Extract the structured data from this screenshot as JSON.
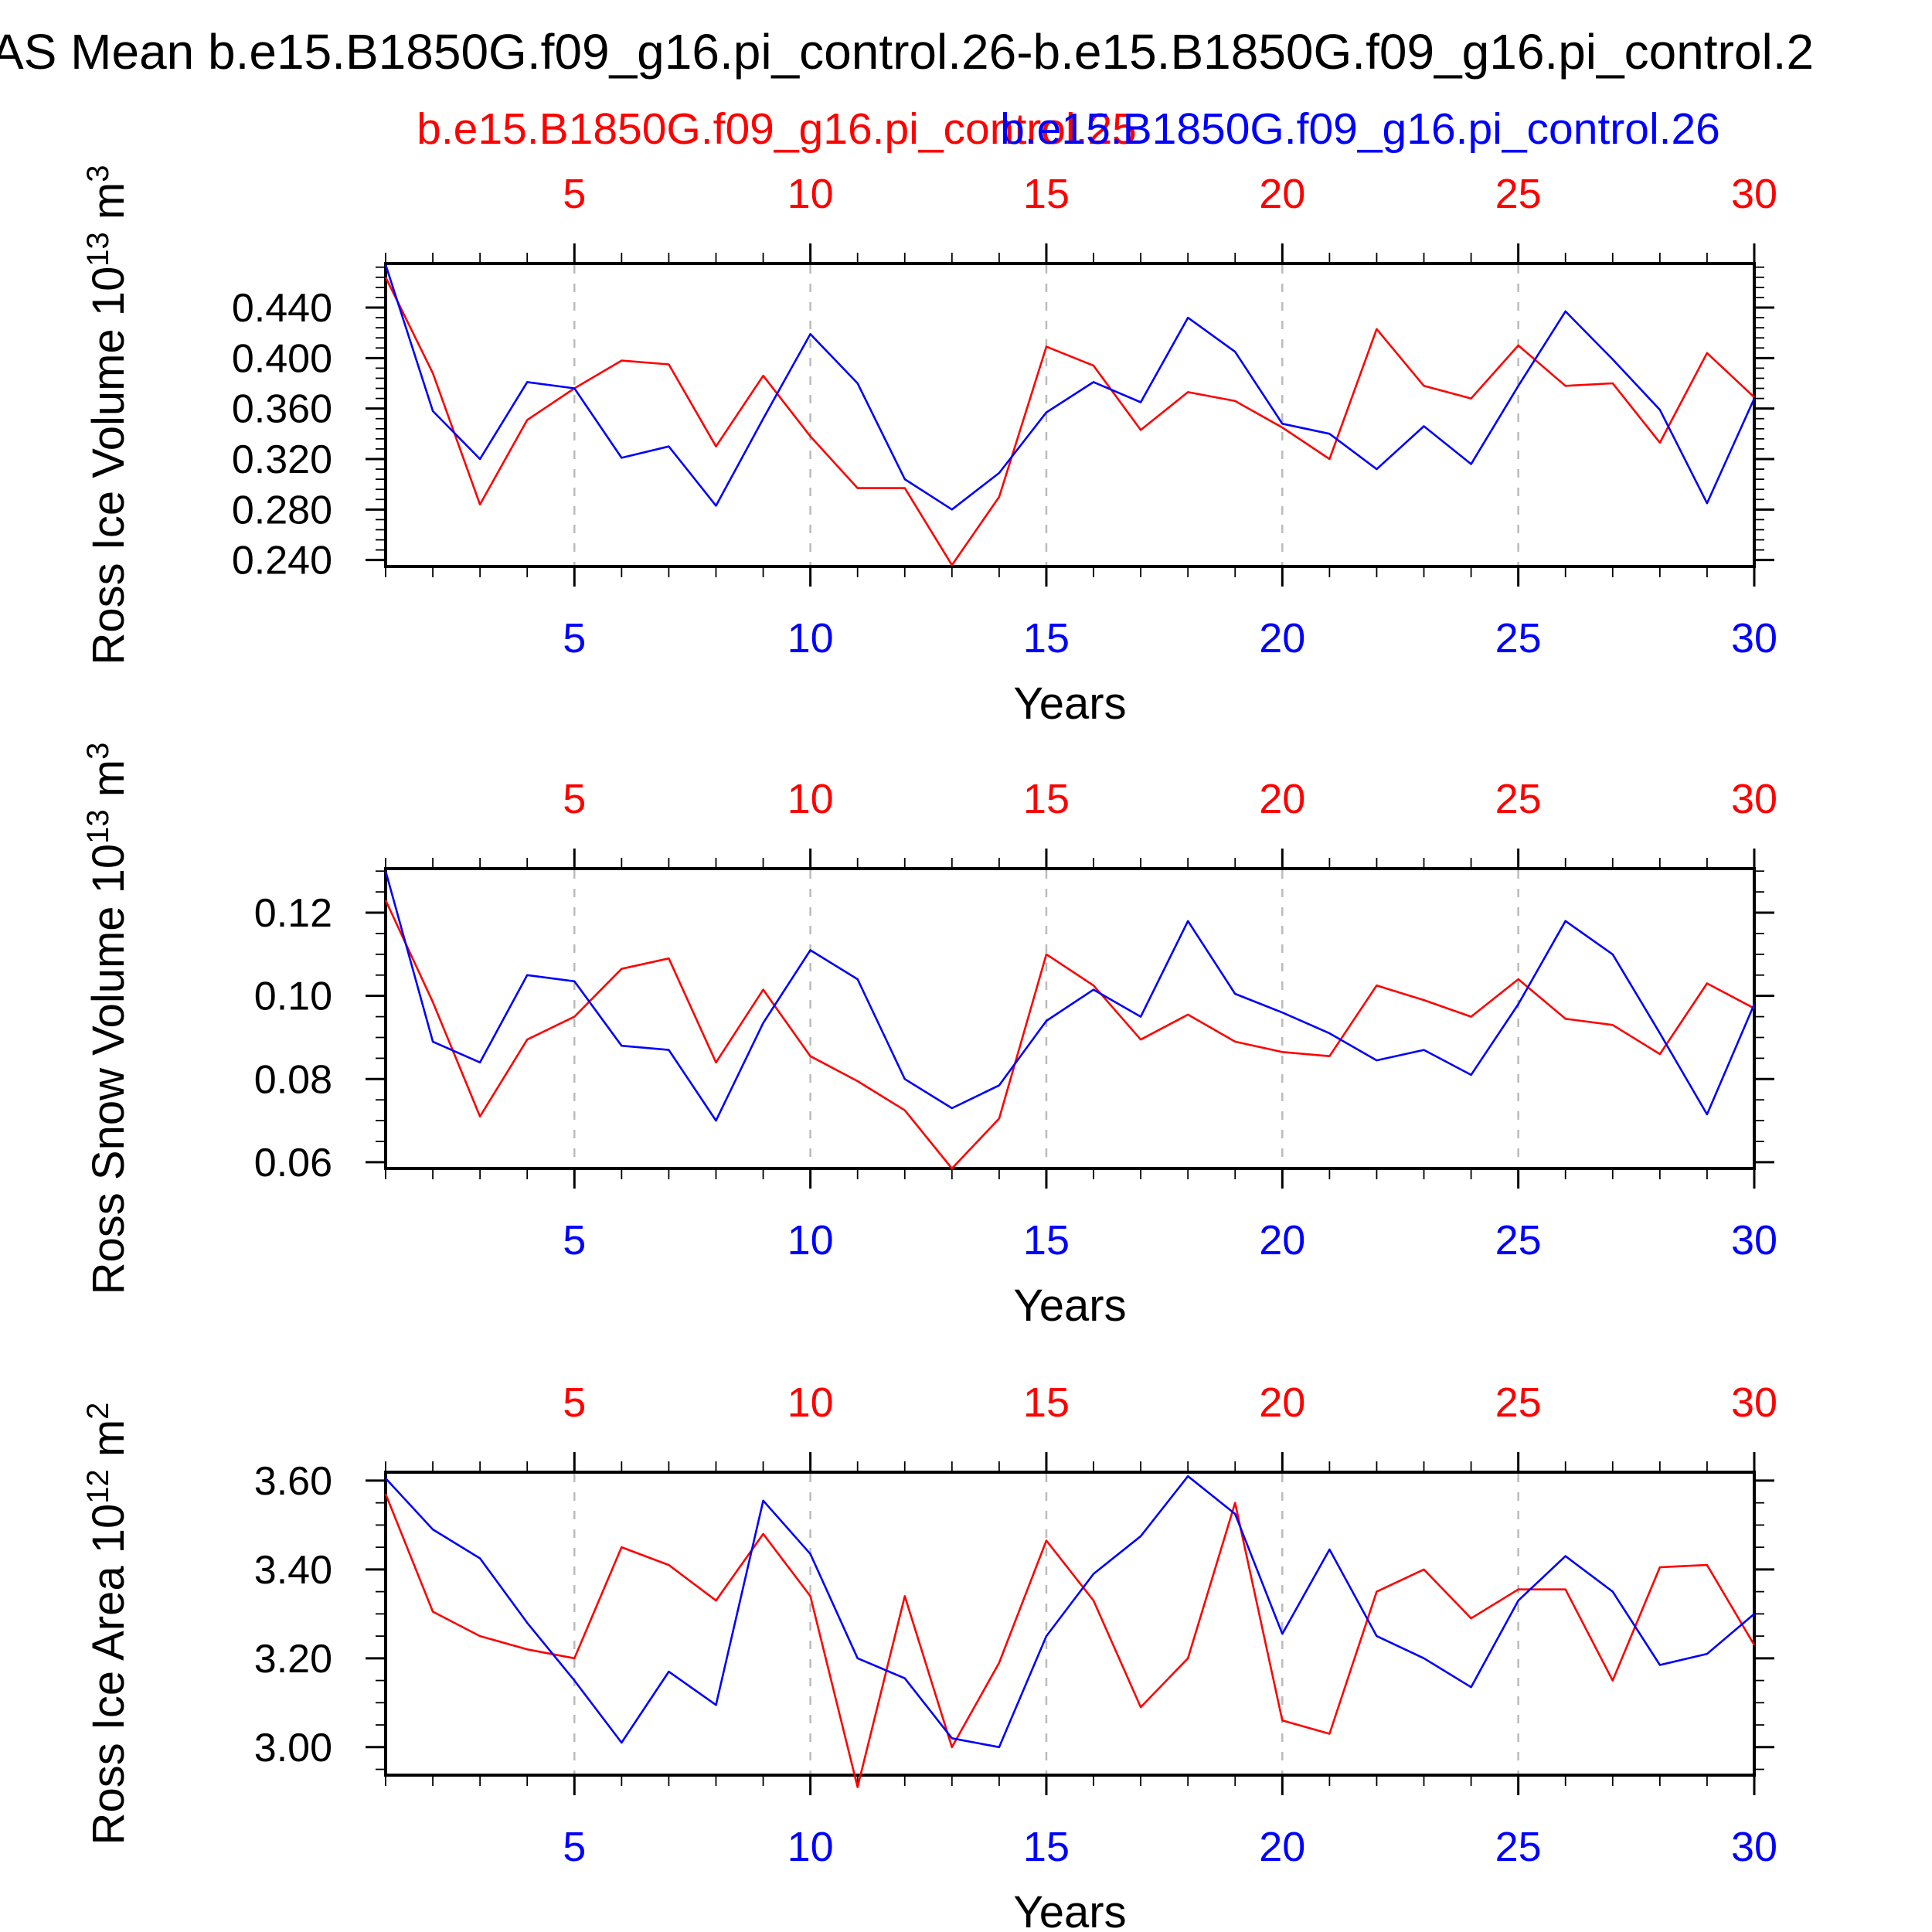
{
  "title": "AS Mean b.e15.B1850G.f09_g16.pi_control.26-b.e15.B1850G.f09_g16.pi_control.2",
  "legend": {
    "red_label": "b.e15.B1850G.f09_g16.pi_control.25",
    "blue_label": "b.e15.B1850G.f09_g16.pi_control.26"
  },
  "colors": {
    "red": "#ff0000",
    "blue": "#0000ff",
    "axis": "#000000",
    "grid": "#bbbbbb",
    "text": "#000000"
  },
  "x_axis": {
    "label": "Years",
    "tick_labels": [
      "5",
      "10",
      "15",
      "20",
      "25",
      "30"
    ],
    "tick_values": [
      5,
      10,
      15,
      20,
      25,
      30
    ],
    "gridline_years": [
      5,
      10,
      15,
      20,
      25
    ],
    "range": [
      1,
      30
    ],
    "top_label_color": "#ff0000",
    "bottom_label_color": "#0000ff"
  },
  "chart_data": [
    {
      "type": "line",
      "ylabel": "Ross Ice Volume 10^13 m^3",
      "xlabel": "Years",
      "ylim": [
        0.2349,
        0.4749
      ],
      "ytick_labels": [
        "0.440",
        "0.400",
        "0.360",
        "0.320",
        "0.280",
        "0.240"
      ],
      "y_major_step": 0.04,
      "y_minor_step": 0.008,
      "grid": "vertical-dashed",
      "legend_position": "none",
      "x": [
        1,
        2,
        3,
        4,
        5,
        6,
        7,
        8,
        9,
        10,
        11,
        12,
        13,
        14,
        15,
        16,
        17,
        18,
        19,
        20,
        21,
        22,
        23,
        24,
        25,
        26,
        27,
        28,
        29,
        30
      ],
      "series": [
        {
          "name": "b.e15.B1850G.f09_g16.pi_control.25",
          "color": "red",
          "values": [
            0.464,
            0.388,
            0.284,
            0.351,
            0.376,
            0.398,
            0.395,
            0.33,
            0.386,
            0.338,
            0.297,
            0.297,
            0.236,
            0.29,
            0.409,
            0.394,
            0.343,
            0.373,
            0.366,
            0.345,
            0.32,
            0.423,
            0.378,
            0.368,
            0.41,
            0.378,
            0.38,
            0.333,
            0.404,
            0.369
          ]
        },
        {
          "name": "b.e15.B1850G.f09_g16.pi_control.26",
          "color": "blue",
          "values": [
            0.474,
            0.358,
            0.32,
            0.381,
            0.376,
            0.321,
            0.33,
            0.283,
            0.352,
            0.419,
            0.38,
            0.304,
            0.28,
            0.309,
            0.357,
            0.381,
            0.365,
            0.432,
            0.405,
            0.348,
            0.34,
            0.312,
            0.346,
            0.316,
            0.378,
            0.437,
            0.399,
            0.359,
            0.285,
            0.368
          ]
        }
      ]
    },
    {
      "type": "line",
      "ylabel": "Ross Snow Volume 10^13 m^3",
      "xlabel": "Years",
      "ylim": [
        0.0585,
        0.1306
      ],
      "ytick_labels": [
        "0.12",
        "0.10",
        "0.08",
        "0.06"
      ],
      "y_major_step": 0.02,
      "y_minor_step": 0.005,
      "grid": "vertical-dashed",
      "legend_position": "none",
      "x": [
        1,
        2,
        3,
        4,
        5,
        6,
        7,
        8,
        9,
        10,
        11,
        12,
        13,
        14,
        15,
        16,
        17,
        18,
        19,
        20,
        21,
        22,
        23,
        24,
        25,
        26,
        27,
        28,
        29,
        30
      ],
      "series": [
        {
          "name": "b.e15.B1850G.f09_g16.pi_control.25",
          "color": "red",
          "values": [
            0.123,
            0.0985,
            0.071,
            0.0895,
            0.095,
            0.1065,
            0.109,
            0.084,
            0.1015,
            0.0855,
            0.0795,
            0.0725,
            0.0585,
            0.0705,
            0.11,
            0.1025,
            0.0895,
            0.0955,
            0.089,
            0.0865,
            0.0855,
            0.1025,
            0.099,
            0.095,
            0.104,
            0.0945,
            0.093,
            0.086,
            0.103,
            0.097
          ]
        },
        {
          "name": "b.e15.B1850G.f09_g16.pi_control.26",
          "color": "blue",
          "values": [
            0.13,
            0.089,
            0.084,
            0.105,
            0.1035,
            0.088,
            0.087,
            0.07,
            0.0935,
            0.111,
            0.104,
            0.08,
            0.073,
            0.0785,
            0.094,
            0.1015,
            0.095,
            0.118,
            0.1005,
            0.096,
            0.091,
            0.0845,
            0.087,
            0.081,
            0.098,
            0.118,
            0.11,
            0.091,
            0.0715,
            0.098
          ]
        }
      ]
    },
    {
      "type": "line",
      "ylabel": "Ross Ice Area 10^12 m^2",
      "xlabel": "Years",
      "ylim": [
        2.937,
        3.619
      ],
      "ytick_labels": [
        "3.60",
        "3.40",
        "3.20",
        "3.00"
      ],
      "y_major_step": 0.2,
      "y_minor_step": 0.05,
      "grid": "vertical-dashed",
      "legend_position": "none",
      "x": [
        1,
        2,
        3,
        4,
        5,
        6,
        7,
        8,
        9,
        10,
        11,
        12,
        13,
        14,
        15,
        16,
        17,
        18,
        19,
        20,
        21,
        22,
        23,
        24,
        25,
        26,
        27,
        28,
        29,
        30
      ],
      "series": [
        {
          "name": "b.e15.B1850G.f09_g16.pi_control.25",
          "color": "red",
          "values": [
            3.57,
            3.305,
            3.25,
            3.22,
            3.2,
            3.45,
            3.41,
            3.33,
            3.48,
            3.34,
            2.91,
            3.34,
            3.0,
            3.19,
            3.465,
            3.33,
            3.09,
            3.2,
            3.55,
            3.06,
            3.03,
            3.35,
            3.4,
            3.29,
            3.355,
            3.355,
            3.15,
            3.405,
            3.41,
            3.23
          ]
        },
        {
          "name": "b.e15.B1850G.f09_g16.pi_control.26",
          "color": "blue",
          "values": [
            3.605,
            3.49,
            3.425,
            3.28,
            3.15,
            3.01,
            3.17,
            3.095,
            3.555,
            3.435,
            3.2,
            3.155,
            3.02,
            3.0,
            3.25,
            3.39,
            3.475,
            3.61,
            3.525,
            3.255,
            3.445,
            3.25,
            3.2,
            3.135,
            3.33,
            3.43,
            3.35,
            3.185,
            3.21,
            3.3
          ]
        }
      ]
    }
  ]
}
